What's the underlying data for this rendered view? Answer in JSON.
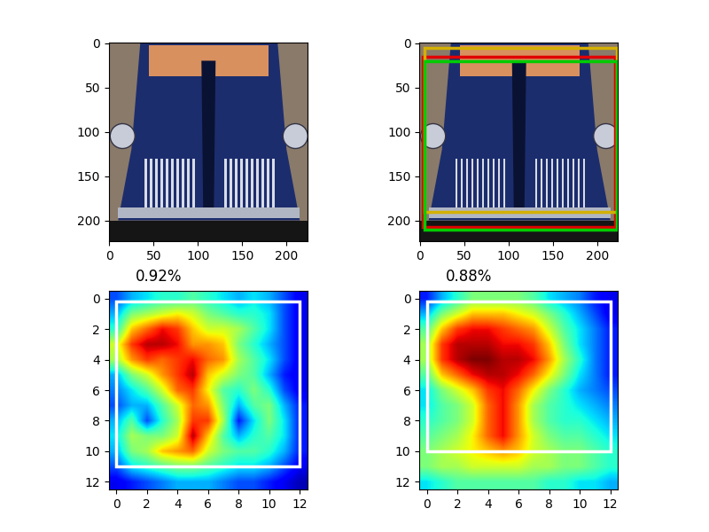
{
  "chart_data": [
    {
      "type": "image",
      "xlim": [
        -0.5,
        223.5
      ],
      "ylim": [
        223.5,
        -0.5
      ],
      "xticks": [
        0,
        50,
        100,
        150,
        200
      ],
      "yticks": [
        0,
        50,
        100,
        150,
        200
      ],
      "boxes": []
    },
    {
      "type": "image",
      "xlim": [
        -0.5,
        223.5
      ],
      "ylim": [
        223.5,
        -0.5
      ],
      "xticks": [
        0,
        50,
        100,
        150,
        200
      ],
      "yticks": [
        0,
        50,
        100,
        150,
        200
      ],
      "boxes": [
        {
          "color": "#e00000",
          "x0": 3,
          "y0": 15,
          "x1": 220,
          "y1": 207
        },
        {
          "color": "#d4b000",
          "x0": 5,
          "y0": 5,
          "x1": 222,
          "y1": 190
        },
        {
          "color": "#00cc00",
          "x0": 5,
          "y0": 20,
          "x1": 222,
          "y1": 210
        }
      ]
    },
    {
      "type": "heatmap",
      "title": "0.92%",
      "xlim": [
        -0.5,
        12.5
      ],
      "ylim": [
        12.5,
        -0.5
      ],
      "xticks": [
        0,
        2,
        4,
        6,
        8,
        10,
        12
      ],
      "yticks": [
        0,
        2,
        4,
        6,
        8,
        10,
        12
      ],
      "clim": [
        0,
        1
      ],
      "cells": [
        [
          0.2,
          0.3,
          0.35,
          0.4,
          0.4,
          0.45,
          0.4,
          0.35,
          0.3,
          0.35,
          0.3,
          0.2,
          0.1
        ],
        [
          0.3,
          0.5,
          0.55,
          0.6,
          0.65,
          0.6,
          0.5,
          0.45,
          0.4,
          0.4,
          0.35,
          0.2,
          0.1
        ],
        [
          0.4,
          0.7,
          0.8,
          0.9,
          0.85,
          0.7,
          0.6,
          0.6,
          0.55,
          0.45,
          0.35,
          0.2,
          0.1
        ],
        [
          0.6,
          0.85,
          0.95,
          0.95,
          0.9,
          0.75,
          0.75,
          0.7,
          0.5,
          0.4,
          0.3,
          0.2,
          0.1
        ],
        [
          0.55,
          0.75,
          0.85,
          0.8,
          0.85,
          0.9,
          0.8,
          0.75,
          0.55,
          0.45,
          0.35,
          0.2,
          0.1
        ],
        [
          0.3,
          0.5,
          0.6,
          0.75,
          0.85,
          0.95,
          0.7,
          0.6,
          0.5,
          0.45,
          0.3,
          0.15,
          0.1
        ],
        [
          0.25,
          0.35,
          0.45,
          0.6,
          0.8,
          0.85,
          0.65,
          0.45,
          0.4,
          0.5,
          0.4,
          0.2,
          0.1
        ],
        [
          0.2,
          0.3,
          0.3,
          0.45,
          0.6,
          0.8,
          0.75,
          0.5,
          0.3,
          0.45,
          0.5,
          0.3,
          0.15
        ],
        [
          0.3,
          0.45,
          0.2,
          0.4,
          0.55,
          0.85,
          0.85,
          0.55,
          0.15,
          0.35,
          0.5,
          0.35,
          0.15
        ],
        [
          0.35,
          0.55,
          0.5,
          0.5,
          0.6,
          0.95,
          0.7,
          0.45,
          0.3,
          0.4,
          0.45,
          0.35,
          0.15
        ],
        [
          0.3,
          0.5,
          0.55,
          0.7,
          0.75,
          0.8,
          0.6,
          0.5,
          0.45,
          0.45,
          0.4,
          0.3,
          0.15
        ],
        [
          0.2,
          0.35,
          0.4,
          0.45,
          0.5,
          0.5,
          0.45,
          0.4,
          0.35,
          0.35,
          0.3,
          0.2,
          0.1
        ],
        [
          0.1,
          0.15,
          0.2,
          0.25,
          0.3,
          0.3,
          0.3,
          0.25,
          0.2,
          0.2,
          0.15,
          0.1,
          0.05
        ]
      ],
      "boxes": [
        {
          "color": "#ffffff",
          "x0": 0,
          "y0": 0.2,
          "x1": 12,
          "y1": 11
        }
      ]
    },
    {
      "type": "heatmap",
      "title": "0.88%",
      "xlim": [
        -0.5,
        12.5
      ],
      "ylim": [
        12.5,
        -0.5
      ],
      "xticks": [
        0,
        2,
        4,
        6,
        8,
        10,
        12
      ],
      "yticks": [
        0,
        2,
        4,
        6,
        8,
        10,
        12
      ],
      "clim": [
        0,
        1
      ],
      "cells": [
        [
          0.15,
          0.3,
          0.4,
          0.5,
          0.5,
          0.5,
          0.5,
          0.45,
          0.35,
          0.3,
          0.25,
          0.15,
          0.1
        ],
        [
          0.3,
          0.5,
          0.6,
          0.7,
          0.7,
          0.7,
          0.65,
          0.6,
          0.5,
          0.4,
          0.3,
          0.2,
          0.1
        ],
        [
          0.45,
          0.7,
          0.85,
          0.9,
          0.9,
          0.85,
          0.8,
          0.75,
          0.6,
          0.45,
          0.35,
          0.25,
          0.15
        ],
        [
          0.55,
          0.85,
          0.95,
          0.95,
          0.95,
          0.9,
          0.9,
          0.85,
          0.7,
          0.5,
          0.35,
          0.25,
          0.15
        ],
        [
          0.55,
          0.85,
          0.95,
          1.0,
          1.0,
          0.95,
          0.95,
          0.9,
          0.75,
          0.55,
          0.4,
          0.25,
          0.15
        ],
        [
          0.45,
          0.7,
          0.8,
          0.9,
          0.95,
          0.95,
          0.9,
          0.8,
          0.65,
          0.5,
          0.35,
          0.25,
          0.15
        ],
        [
          0.35,
          0.5,
          0.6,
          0.7,
          0.85,
          0.9,
          0.8,
          0.65,
          0.5,
          0.4,
          0.3,
          0.25,
          0.2
        ],
        [
          0.35,
          0.45,
          0.5,
          0.6,
          0.8,
          0.9,
          0.75,
          0.55,
          0.45,
          0.4,
          0.35,
          0.3,
          0.25
        ],
        [
          0.4,
          0.45,
          0.5,
          0.6,
          0.8,
          0.9,
          0.75,
          0.55,
          0.45,
          0.4,
          0.4,
          0.35,
          0.3
        ],
        [
          0.45,
          0.5,
          0.55,
          0.65,
          0.8,
          0.9,
          0.75,
          0.6,
          0.5,
          0.45,
          0.45,
          0.4,
          0.35
        ],
        [
          0.5,
          0.55,
          0.6,
          0.65,
          0.7,
          0.75,
          0.7,
          0.6,
          0.55,
          0.5,
          0.5,
          0.45,
          0.4
        ],
        [
          0.5,
          0.55,
          0.55,
          0.6,
          0.6,
          0.6,
          0.6,
          0.55,
          0.55,
          0.5,
          0.5,
          0.45,
          0.4
        ],
        [
          0.35,
          0.4,
          0.45,
          0.45,
          0.45,
          0.45,
          0.45,
          0.45,
          0.4,
          0.4,
          0.35,
          0.35,
          0.3
        ]
      ],
      "boxes": [
        {
          "color": "#ffffff",
          "x0": 0,
          "y0": 0.2,
          "x1": 12,
          "y1": 10
        }
      ]
    }
  ]
}
